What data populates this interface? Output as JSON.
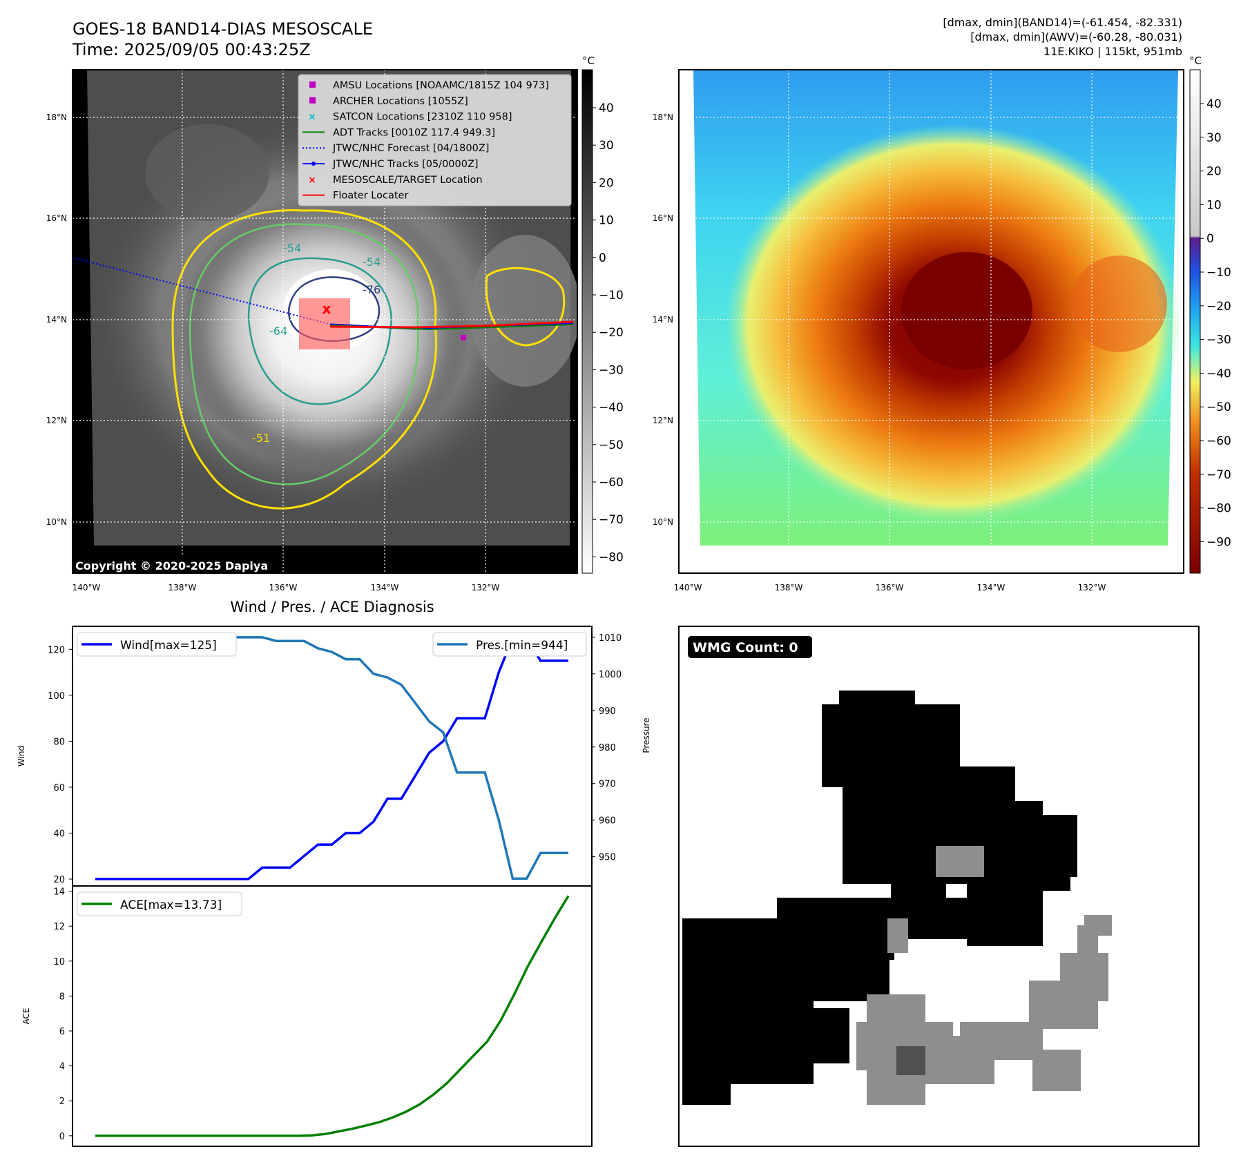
{
  "header": {
    "title_line1": "GOES-18 BAND14-DIAS MESOSCALE",
    "title_line2": "Time: 2025/09/05 00:43:25Z",
    "info_line1": "[dmax, dmin](BAND14)=(-61.454, -82.331)",
    "info_line2": "[dmax, dmin](AWV)=(-60.28, -80.031)",
    "info_line3": "11E.KIKO | 115kt, 951mb"
  },
  "copyright": "Copyright © 2020-2025 Dapiya",
  "colors": {
    "wind": "#0000ff",
    "pressure": "#1f77b4",
    "ace": "#008000",
    "track_red": "#ff0000",
    "forecast_blue": "#0000ff",
    "amsu": "#c000c0",
    "satcon": "#00c0c0",
    "adt": "#008000",
    "contour_yellow": "#ffe000",
    "contour_green": "#66cc66",
    "contour_teal": "#2a9d8f",
    "contour_navy": "#2c3e80",
    "target_box": "#ff6060"
  },
  "map_axes": {
    "lon_ticks": [
      "140°W",
      "138°W",
      "136°W",
      "134°W",
      "132°W"
    ],
    "lat_ticks": [
      "18°N",
      "16°N",
      "14°N",
      "12°N",
      "10°N"
    ]
  },
  "ir_panel": {
    "colorbar_unit": "°C",
    "colorbar_ticks": [
      "40",
      "30",
      "20",
      "10",
      "0",
      "−10",
      "−20",
      "−30",
      "−40",
      "−50",
      "−60",
      "−70",
      "−80"
    ],
    "contour_labels": [
      "-54",
      "-54",
      "-76",
      "-64",
      "-51"
    ],
    "target_marker": "x",
    "legend": [
      {
        "label": "AMSU Locations [NOAAMC/1815Z 104 973]",
        "symbol": "square",
        "color": "#c000c0"
      },
      {
        "label": "ARCHER Locations [1055Z]",
        "symbol": "square",
        "color": "#c000c0"
      },
      {
        "label": "SATCON Locations [2310Z 110 958]",
        "symbol": "x",
        "color": "#00c0c0"
      },
      {
        "label": "ADT Tracks [0010Z 117.4 949.3]",
        "symbol": "line",
        "color": "#008000"
      },
      {
        "label": "JTWC/NHC Forecast [04/1800Z]",
        "symbol": "dotted",
        "color": "#0000ff"
      },
      {
        "label": "JTWC/NHC Tracks [05/0000Z]",
        "symbol": "line-dot",
        "color": "#0000ff"
      },
      {
        "label": "MESOSCALE/TARGET Location",
        "symbol": "x",
        "color": "#ff0000"
      },
      {
        "label": "Floater Locater",
        "symbol": "line",
        "color": "#ff0000"
      }
    ]
  },
  "awv_panel": {
    "colorbar_unit": "°C",
    "colorbar_ticks": [
      "40",
      "30",
      "20",
      "10",
      "0",
      "−10",
      "−20",
      "−30",
      "−40",
      "−50",
      "−60",
      "−70",
      "−80",
      "−90"
    ]
  },
  "wmg_panel": {
    "badge": "WMG Count: 0"
  },
  "chart_data": [
    {
      "type": "line",
      "title": "Wind / Pres. / ACE Diagnosis",
      "ylabel": "Wind",
      "ylabel_right": "Pressure",
      "ylim": [
        17,
        130
      ],
      "ylim_right": [
        942,
        1013
      ],
      "yticks": [
        20,
        40,
        60,
        80,
        100,
        120
      ],
      "yticks_right": [
        950,
        960,
        970,
        980,
        990,
        1000,
        1010
      ],
      "series": [
        {
          "name": "Wind[max=125]",
          "color": "#0000ff",
          "axis": "left",
          "values": [
            20,
            20,
            20,
            20,
            20,
            20,
            20,
            20,
            20,
            20,
            20,
            20,
            25,
            25,
            25,
            30,
            35,
            35,
            40,
            40,
            45,
            55,
            55,
            65,
            75,
            80,
            90,
            90,
            90,
            110,
            125,
            125,
            115,
            115,
            115
          ]
        },
        {
          "name": "Pres.[min=944]",
          "color": "#1f77b4",
          "axis": "right",
          "values": [
            1010,
            1010,
            1010,
            1010,
            1010,
            1010,
            1010,
            1010,
            1010,
            1010,
            1010,
            1010,
            1010,
            1009,
            1009,
            1009,
            1007,
            1006,
            1004,
            1004,
            1000,
            999,
            997,
            992,
            987,
            984,
            973,
            973,
            973,
            960,
            944,
            944,
            951,
            951,
            951
          ]
        }
      ]
    },
    {
      "type": "line",
      "ylabel": "ACE",
      "ylim": [
        -0.6,
        14.3
      ],
      "yticks": [
        0,
        2,
        4,
        6,
        8,
        10,
        12,
        14
      ],
      "series": [
        {
          "name": "ACE[max=13.73]",
          "color": "#008000",
          "values": [
            0,
            0,
            0,
            0,
            0,
            0,
            0,
            0,
            0,
            0,
            0,
            0,
            0,
            0,
            0,
            0,
            0.02,
            0.1,
            0.25,
            0.4,
            0.58,
            0.78,
            1.05,
            1.38,
            1.8,
            2.35,
            3.0,
            3.8,
            4.6,
            5.4,
            6.6,
            8.1,
            9.7,
            11.1,
            12.45,
            13.73
          ]
        }
      ]
    }
  ]
}
